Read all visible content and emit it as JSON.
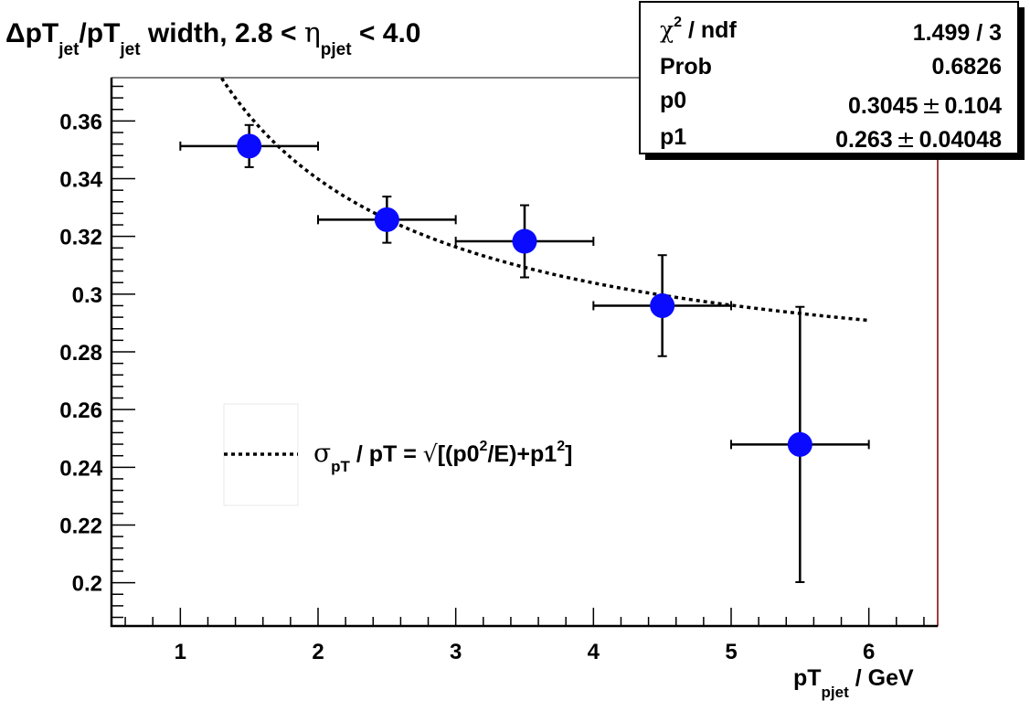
{
  "chart_data": {
    "type": "scatter",
    "title": {
      "prefix": "ΔpT",
      "sub1": "jet",
      "mid": "/pT",
      "sub2": "jet",
      "mid2": " width, 2.8 < ",
      "eta": "η",
      "sub3": "pjet",
      "suffix": " < 4.0"
    },
    "xlabel": {
      "main": "pT",
      "sub": "pjet",
      "tail": " / GeV"
    },
    "ylabel": "",
    "xlim": [
      0.5,
      6.5
    ],
    "ylim": [
      0.185,
      0.375
    ],
    "xticks": [
      1,
      2,
      3,
      4,
      5,
      6
    ],
    "xtick_labels": [
      "1",
      "2",
      "3",
      "4",
      "5",
      "6"
    ],
    "yticks": [
      0.2,
      0.22,
      0.24,
      0.26,
      0.28,
      0.3,
      0.32,
      0.34,
      0.36
    ],
    "ytick_labels": [
      "0.2",
      "0.22",
      "0.24",
      "0.26",
      "0.28",
      "0.3",
      "0.32",
      "0.34",
      "0.36"
    ],
    "points": [
      {
        "x": 1.5,
        "y": 0.3513,
        "xerr": 0.5,
        "yerr_low": 0.0073,
        "yerr_high": 0.0073
      },
      {
        "x": 2.5,
        "y": 0.3258,
        "xerr": 0.5,
        "yerr_low": 0.008,
        "yerr_high": 0.008
      },
      {
        "x": 3.5,
        "y": 0.3183,
        "xerr": 0.5,
        "yerr_low": 0.0125,
        "yerr_high": 0.0125
      },
      {
        "x": 4.5,
        "y": 0.296,
        "xerr": 0.5,
        "yerr_low": 0.0175,
        "yerr_high": 0.0175
      },
      {
        "x": 5.5,
        "y": 0.2479,
        "xerr": 0.5,
        "yerr_low": 0.0477,
        "yerr_high": 0.0477
      }
    ],
    "fit": {
      "function": "sqrt(p0^2/x + p1^2)",
      "p0": 0.3045,
      "p1": 0.263,
      "x_range": [
        1.0,
        6.0
      ],
      "style": "dotted",
      "color": "#000000"
    },
    "marker_color": "#0a0aff",
    "grid": false,
    "legend": {
      "placement": "lower-left",
      "entry": {
        "sigma": "σ",
        "sub": "pT",
        "text1": " / pT = ",
        "sqrt": "√",
        "text2": "[(p0",
        "sup1": "2",
        "text3": "/E)+p1",
        "sup2": "2",
        "text4": "]"
      }
    },
    "stats": {
      "placement": "top-right",
      "rows": [
        {
          "label_chi": "χ",
          "label_sup": "2",
          "label_rest": " / ndf",
          "value": "1.499 / 3"
        },
        {
          "label": "Prob",
          "value": "0.6826"
        },
        {
          "label": "p0",
          "value": "0.3045",
          "pm": "±",
          "err": "0.104"
        },
        {
          "label": "p1",
          "value": "0.263",
          "pm": "±",
          "err": "0.04048"
        }
      ]
    }
  }
}
